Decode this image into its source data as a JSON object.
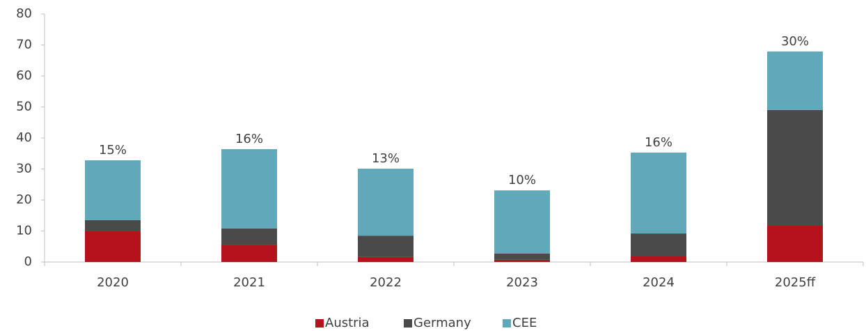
{
  "chart_data": {
    "type": "stacked_bar",
    "categories": [
      "2020",
      "2021",
      "2022",
      "2023",
      "2024",
      "2025ff"
    ],
    "series": [
      {
        "name": "Austria",
        "color": "#b5121b",
        "values": [
          10.1,
          5.6,
          1.6,
          0.7,
          1.8,
          11.9
        ]
      },
      {
        "name": "Germany",
        "color": "#4a4a4a",
        "values": [
          3.4,
          5.2,
          6.9,
          2.0,
          7.4,
          37.1
        ]
      },
      {
        "name": "CEE",
        "color": "#62a8bb",
        "values": [
          19.3,
          25.6,
          21.6,
          20.4,
          26.1,
          18.9
        ]
      }
    ],
    "annotations": [
      "15%",
      "16%",
      "13%",
      "10%",
      "16%",
      "30%"
    ],
    "ylim": [
      0,
      80
    ],
    "yticks": [
      0,
      10,
      20,
      30,
      40,
      50,
      60,
      70,
      80
    ],
    "legend": "bottom"
  }
}
